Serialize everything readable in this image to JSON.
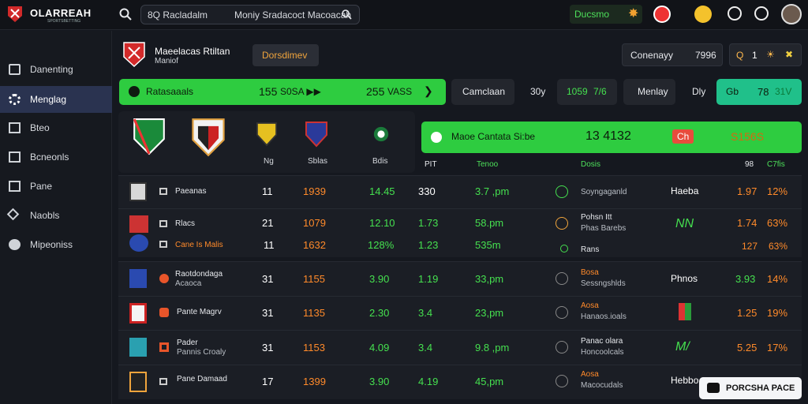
{
  "brand": {
    "name": "OLARREAH",
    "sub": "SPORTSBETTING"
  },
  "search": {
    "left": "8Q Racladalm",
    "right": "Moniy   Sradacoct Macoacah"
  },
  "top": {
    "deposit": "Ducsmo"
  },
  "sidebar": {
    "items": [
      {
        "label": "Danenting"
      },
      {
        "label": "Menglag"
      },
      {
        "label": "Bteo"
      },
      {
        "label": "Bcneonls"
      },
      {
        "label": "Pane"
      },
      {
        "label": "Naobls"
      },
      {
        "label": "Mipeoniss"
      }
    ]
  },
  "league": {
    "title": "Maeelacas Rtiltan",
    "sub": "Maniof",
    "tag": "Dorsdimev"
  },
  "country": {
    "label": "Conenayy",
    "value": "7996"
  },
  "scorebox": {
    "a": "Q",
    "b": "1",
    "c": "☀",
    "d": "✖"
  },
  "bar1": {
    "label": "Ratasaaals",
    "v1": "155",
    "v2": "S0SA ▶▶",
    "v3": "255",
    "v4": "VASS"
  },
  "chips": {
    "c1": "Camclaan",
    "c2": "30y",
    "c3": "1059",
    "c4": "7/6",
    "c5": "Menlay",
    "c6": "Dly"
  },
  "bar2": {
    "label": "Gb",
    "value": "78",
    "sub": "31V"
  },
  "teams_panel": {
    "labels": [
      "Ng",
      "Sblas",
      "Bdis"
    ]
  },
  "right_bar": {
    "label": "Maoe Cantata Si:be",
    "value": "13 4132",
    "badge": "Ch",
    "extra": "S156S"
  },
  "right_heads": [
    "PIT",
    "Tenoo",
    "Dosis",
    "98",
    "C7fis"
  ],
  "rows": [
    {
      "name": "Paeanas",
      "sub": "",
      "n": "11",
      "o1": "1939",
      "g1": "14.45",
      "w1": "330",
      "g2": "3.7 ,pm",
      "team": "Soyngaganld",
      "team2": "",
      "side": "Haeba",
      "o2": "1.97",
      "o3": "12%"
    },
    {
      "name": "Rlacs",
      "sub": "Cane Is Malis",
      "n": "21",
      "o1": "1079",
      "g1": "12.10",
      "w1": "1.73",
      "g2": "58.pm",
      "team": "Pohsn Itt",
      "team2": "Phas Barebs",
      "side": "NN",
      "o2": "1.74",
      "o3": "63%",
      "n2": "11",
      "o1b": "1632",
      "g1b": "128%",
      "w1b": "1.23",
      "g2b": "535m",
      "team3": "Rans",
      "o2b": "127",
      "o3b": "63%"
    },
    {
      "name": "Raotdondaga",
      "sub": "Acaoca",
      "n": "31",
      "o1": "1155",
      "g1": "3.90",
      "w1": "1.19",
      "g2": "33,pm",
      "team": "Bosa",
      "team2": "Sessngshlds",
      "side": "Phnos",
      "o2": "3.93",
      "o3": "14%"
    },
    {
      "name": "Pante Magrv",
      "sub": "",
      "n": "31",
      "o1": "1135",
      "g1": "2.30",
      "w1": "3.4",
      "g2": "23,pm",
      "team": "Aosa",
      "team2": "Hanaos.ioals",
      "side": "",
      "o2": "1.25",
      "o3": "19%"
    },
    {
      "name": "Pader",
      "sub": "Pannis Croaly",
      "n": "31",
      "o1": "1153",
      "g1": "4.09",
      "w1": "3.4",
      "g2": "9.8 ,pm",
      "team": "Panac olara",
      "team2": "Honcoolcals",
      "side": "M/",
      "o2": "5.25",
      "o3": "17%"
    },
    {
      "name": "Pane Damaad",
      "sub": "",
      "n": "17",
      "o1": "1399",
      "g1": "3.90",
      "w1": "4.19",
      "g2": "45,pm",
      "team": "Aosa",
      "team2": "Macocudals",
      "side": "Hebbo",
      "o2": "",
      "o3": ""
    }
  ],
  "chat": {
    "label": "PORCSHA PACE"
  }
}
